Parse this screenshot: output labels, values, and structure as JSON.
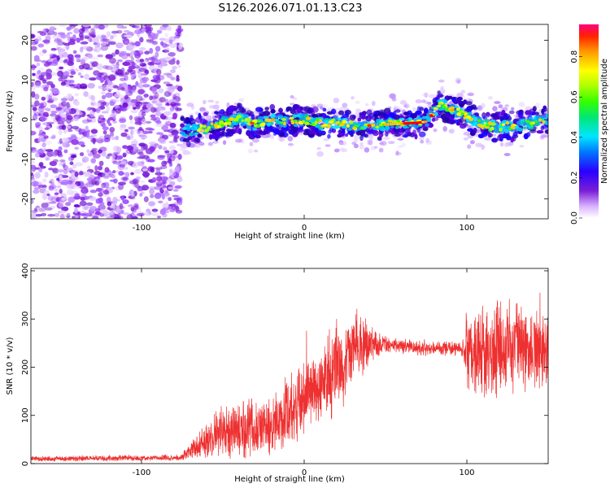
{
  "title": "S126.2026.071.01.13.C23",
  "chart_data": [
    {
      "type": "heatmap",
      "xlabel": "Height of straight line (km)",
      "ylabel": "Frequency (Hz)",
      "xlim": [
        -168,
        150
      ],
      "ylim": [
        -25,
        24
      ],
      "xticks": [
        -100,
        0,
        100
      ],
      "yticks": [
        -20,
        -10,
        0,
        10,
        20
      ],
      "noise_region_end_km": -76,
      "ridge": {
        "description_points_km_hz": [
          [
            -76,
            -3
          ],
          [
            -65,
            -2.5
          ],
          [
            -50,
            -1
          ],
          [
            -40,
            0.2
          ],
          [
            -30,
            -1.2
          ],
          [
            -20,
            0
          ],
          [
            -10,
            -0.5
          ],
          [
            0,
            0
          ],
          [
            10,
            -1
          ],
          [
            20,
            -0.6
          ],
          [
            30,
            -1.5
          ],
          [
            40,
            -1.5
          ],
          [
            50,
            -1.2
          ],
          [
            60,
            -1
          ],
          [
            70,
            -0.8
          ],
          [
            75,
            -0.5
          ],
          [
            80,
            2
          ],
          [
            84,
            4
          ],
          [
            90,
            2.5
          ],
          [
            95,
            2
          ],
          [
            100,
            1
          ],
          [
            110,
            -1.5
          ],
          [
            120,
            -1.8
          ],
          [
            130,
            -1.5
          ],
          [
            140,
            -0.8
          ],
          [
            150,
            0
          ]
        ],
        "peak_amplitude_range_km": [
          50,
          75
        ]
      },
      "colorbar": {
        "label": "Normalized spectral amplitude",
        "ticks": [
          "0.0",
          "0.2",
          "0.4",
          "0.6",
          "0.8"
        ],
        "range": [
          0,
          0.96
        ]
      },
      "colors": {
        "noise": "#8a2be2",
        "ridge_low": "#3300cc",
        "ridge_mid": "#00bfff",
        "ridge_high": "#ff0000"
      }
    },
    {
      "type": "line",
      "xlabel": "Height of straight line (km)",
      "ylabel": "SNR (10 * v/v)",
      "xlim": [
        -168,
        150
      ],
      "ylim": [
        0,
        405
      ],
      "xticks": [
        -100,
        0,
        100
      ],
      "yticks": [
        0,
        100,
        200,
        300,
        400
      ],
      "series": [
        {
          "name": "SNR",
          "color": "#ee3030",
          "envelope_x": [
            -168,
            -76,
            -68,
            -60,
            -50,
            -40,
            -30,
            -20,
            -10,
            0,
            10,
            20,
            30,
            40,
            50,
            60,
            70,
            80,
            90,
            98,
            100,
            110,
            120,
            130,
            140,
            150
          ],
          "envelope_mean": [
            10,
            12,
            30,
            50,
            70,
            70,
            80,
            70,
            110,
            140,
            165,
            200,
            235,
            245,
            245,
            245,
            240,
            240,
            240,
            240,
            235,
            225,
            240,
            240,
            230,
            235
          ],
          "envelope_amp": [
            6,
            8,
            25,
            40,
            60,
            70,
            80,
            70,
            90,
            90,
            100,
            110,
            100,
            50,
            22,
            18,
            18,
            18,
            18,
            18,
            100,
            120,
            120,
            110,
            100,
            90
          ]
        }
      ]
    }
  ]
}
